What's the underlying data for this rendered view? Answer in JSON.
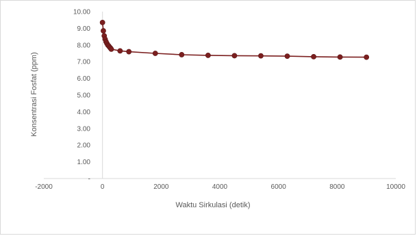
{
  "chart_data": {
    "type": "scatter",
    "title": "",
    "xlabel": "Waktu Sirkulasi (detik)",
    "ylabel": "Konsentrasi Fosfat (ppm)",
    "xlim": [
      -2000,
      10000
    ],
    "ylim": [
      0,
      10
    ],
    "x_ticks": [
      -2000,
      0,
      2000,
      4000,
      6000,
      8000,
      10000
    ],
    "y_ticks": [
      "10.00",
      "9.00",
      "8.00",
      "7.00",
      "6.00",
      "5.00",
      "4.00",
      "3.00",
      "2.00",
      "1.00",
      "-"
    ],
    "y_tick_values": [
      10,
      9,
      8,
      7,
      6,
      5,
      4,
      3,
      2,
      1,
      0
    ],
    "grid": false,
    "series": [
      {
        "marker_color": "#7b1f1f",
        "line_color": "#7b1f1f",
        "x": [
          0,
          30,
          60,
          90,
          120,
          150,
          180,
          210,
          240,
          270,
          300,
          600,
          900,
          1800,
          2700,
          3600,
          4500,
          5400,
          6300,
          7200,
          8100,
          9000
        ],
        "y": [
          9.35,
          8.85,
          8.55,
          8.35,
          8.2,
          8.1,
          8.0,
          7.95,
          7.88,
          7.82,
          7.75,
          7.65,
          7.6,
          7.5,
          7.42,
          7.38,
          7.36,
          7.35,
          7.33,
          7.3,
          7.28,
          7.27
        ]
      }
    ]
  }
}
